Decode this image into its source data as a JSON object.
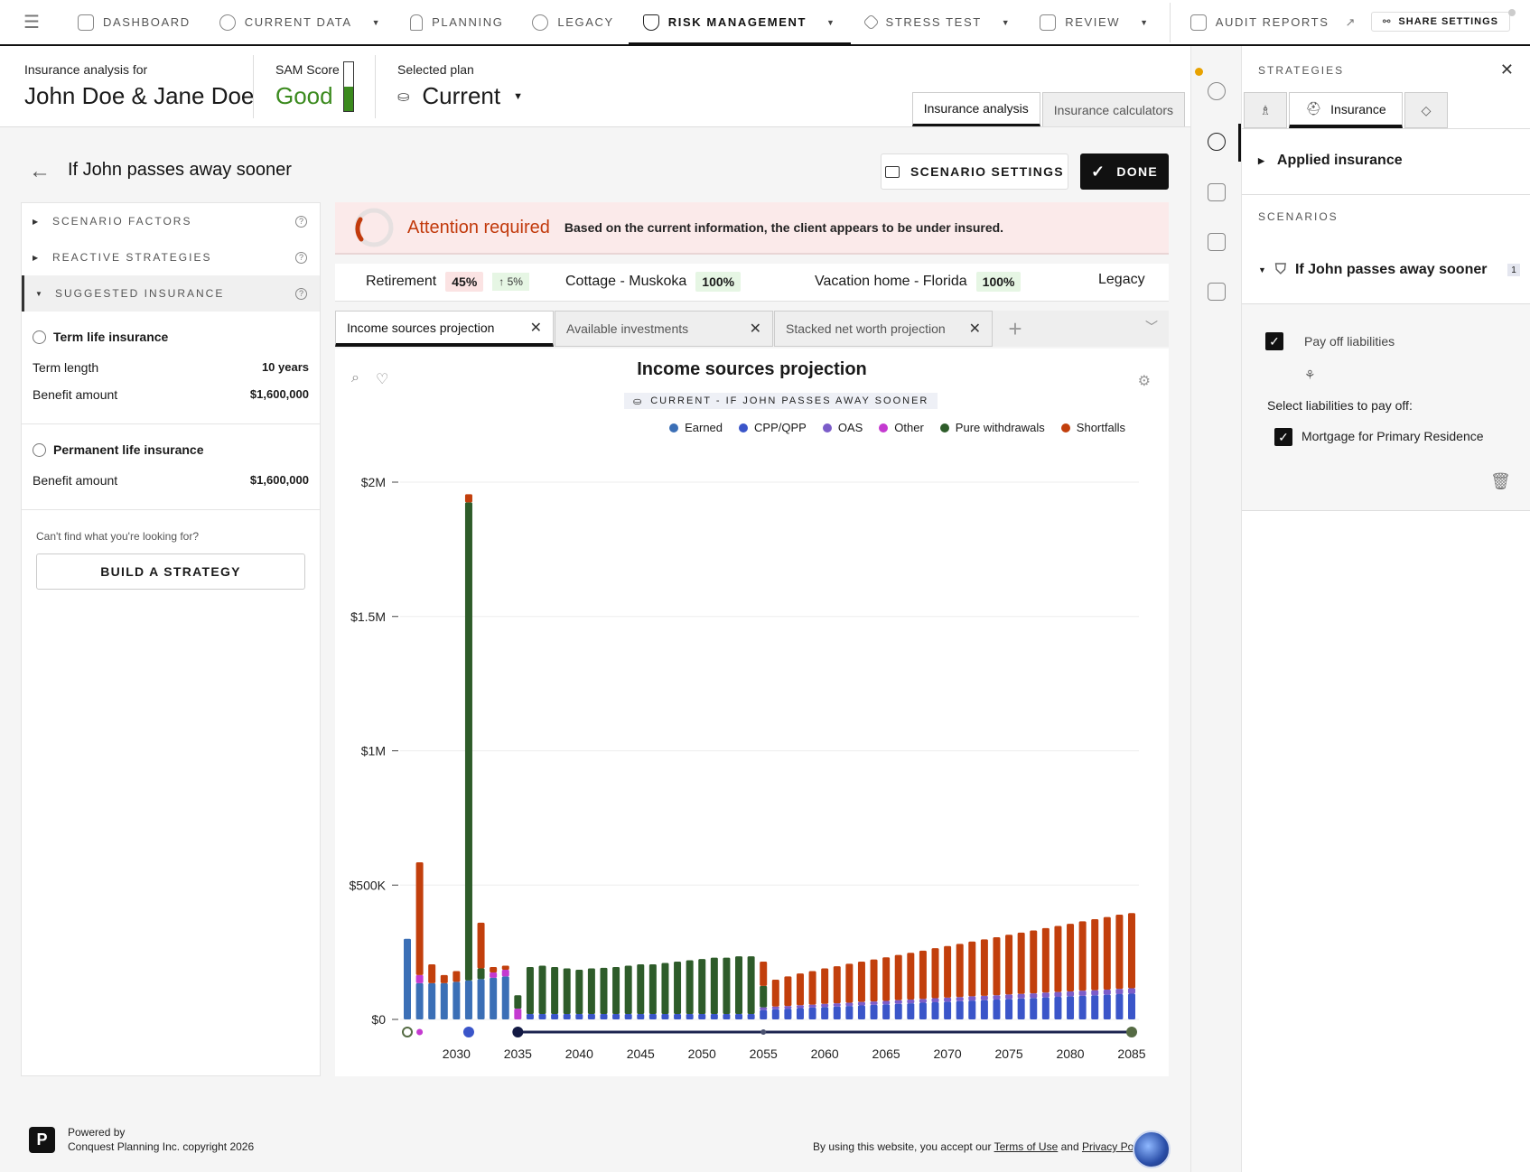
{
  "nav": {
    "items": [
      {
        "label": "DASHBOARD",
        "icon": "dashboard-icon",
        "caret": false,
        "active": false
      },
      {
        "label": "CURRENT DATA",
        "icon": "users-icon",
        "caret": true,
        "active": false
      },
      {
        "label": "PLANNING",
        "icon": "chess-icon",
        "caret": false,
        "active": false
      },
      {
        "label": "LEGACY",
        "icon": "family-icon",
        "caret": false,
        "active": false
      },
      {
        "label": "RISK MANAGEMENT",
        "icon": "shield-icon",
        "caret": true,
        "active": true
      },
      {
        "label": "STRESS TEST",
        "icon": "diamond-icon",
        "caret": true,
        "active": false
      },
      {
        "label": "REVIEW",
        "icon": "review-icon",
        "caret": true,
        "active": false
      },
      {
        "label": "AUDIT REPORTS",
        "icon": "audit-icon",
        "caret": false,
        "active": false
      }
    ],
    "share_label": "SHARE SETTINGS"
  },
  "header": {
    "for_label": "Insurance analysis for",
    "client_name": "John Doe & Jane Doe",
    "sam_label": "SAM Score",
    "sam_value": "Good",
    "sam_level": 0.5,
    "plan_label": "Selected plan",
    "plan_value": "Current",
    "tabs": [
      "Insurance analysis",
      "Insurance calculators"
    ]
  },
  "scenario": {
    "title": "If John passes away sooner",
    "settings_label": "SCENARIO SETTINGS",
    "done_label": "DONE"
  },
  "left": {
    "accordions": [
      "SCENARIO FACTORS",
      "REACTIVE STRATEGIES",
      "SUGGESTED INSURANCE"
    ],
    "term": {
      "title": "Term life insurance",
      "length_label": "Term length",
      "length_value": "10 years",
      "benefit_label": "Benefit amount",
      "benefit_value": "$1,600,000"
    },
    "permanent": {
      "title": "Permanent life insurance",
      "benefit_label": "Benefit amount",
      "benefit_value": "$1,600,000"
    },
    "cant_find": "Can't find what you're looking for?",
    "build_label": "BUILD A STRATEGY"
  },
  "alert": {
    "title": "Attention required",
    "message": "Based on the current information, the client appears to be under insured."
  },
  "goals": {
    "retirement_label": "Retirement",
    "retirement_pct": "45%",
    "retirement_change": "5%",
    "cottage_label": "Cottage - Muskoka",
    "cottage_pct": "100%",
    "vacation_label": "Vacation home - Florida",
    "vacation_pct": "100%",
    "legacy_label": "Legacy"
  },
  "chart_tabs": [
    "Income sources projection",
    "Available investments",
    "Stacked net worth projection"
  ],
  "chart_data": {
    "type": "bar",
    "stacked": true,
    "title": "Income sources projection",
    "subtitle": "CURRENT - IF JOHN PASSES AWAY SOONER",
    "legend": [
      {
        "name": "Earned",
        "color": "#3b6fb6"
      },
      {
        "name": "CPP/QPP",
        "color": "#3a55c9"
      },
      {
        "name": "OAS",
        "color": "#7b5cc9"
      },
      {
        "name": "Other",
        "color": "#c43ad0"
      },
      {
        "name": "Pure withdrawals",
        "color": "#2e5c2a"
      },
      {
        "name": "Shortfalls",
        "color": "#c23f0c"
      }
    ],
    "y_ticks": [
      "$2M",
      "$1.5M",
      "$1M",
      "$500K",
      "$0"
    ],
    "ylim": [
      0,
      2000000
    ],
    "x_ticks": [
      "2030",
      "2035",
      "2040",
      "2045",
      "2050",
      "2055",
      "2060",
      "2065",
      "2070",
      "2075",
      "2080",
      "2085"
    ],
    "years": [
      2026,
      2027,
      2028,
      2029,
      2030,
      2031,
      2032,
      2033,
      2034,
      2035,
      2036,
      2037,
      2038,
      2039,
      2040,
      2041,
      2042,
      2043,
      2044,
      2045,
      2046,
      2047,
      2048,
      2049,
      2050,
      2051,
      2052,
      2053,
      2054,
      2055,
      2056,
      2057,
      2058,
      2059,
      2060,
      2061,
      2062,
      2063,
      2064,
      2065,
      2066,
      2067,
      2068,
      2069,
      2070,
      2071,
      2072,
      2073,
      2074,
      2075,
      2076,
      2077,
      2078,
      2079,
      2080,
      2081,
      2082,
      2083,
      2084,
      2085
    ],
    "series": [
      {
        "name": "Earned",
        "values": [
          300000,
          135000,
          135000,
          135000,
          140000,
          145000,
          150000,
          155000,
          160000,
          0,
          0,
          0,
          0,
          0,
          0,
          0,
          0,
          0,
          0,
          0,
          0,
          0,
          0,
          0,
          0,
          0,
          0,
          0,
          0,
          0,
          0,
          0,
          0,
          0,
          0,
          0,
          0,
          0,
          0,
          0,
          0,
          0,
          0,
          0,
          0,
          0,
          0,
          0,
          0,
          0,
          0,
          0,
          0,
          0,
          0,
          0,
          0,
          0,
          0,
          0
        ]
      },
      {
        "name": "CPP/QPP",
        "values": [
          0,
          0,
          0,
          0,
          0,
          0,
          0,
          0,
          0,
          0,
          20000,
          20000,
          20000,
          20000,
          20000,
          20000,
          20000,
          20000,
          20000,
          20000,
          20000,
          20000,
          20000,
          20000,
          20000,
          20000,
          20000,
          20000,
          20000,
          35000,
          38000,
          40000,
          42000,
          44000,
          46000,
          48000,
          50000,
          52000,
          54000,
          56000,
          58000,
          60000,
          62000,
          64000,
          66000,
          68000,
          70000,
          72000,
          74000,
          76000,
          78000,
          80000,
          82000,
          84000,
          86000,
          88000,
          90000,
          92000,
          94000,
          96000
        ]
      },
      {
        "name": "OAS",
        "values": [
          0,
          0,
          0,
          0,
          0,
          0,
          0,
          0,
          0,
          0,
          0,
          0,
          0,
          0,
          0,
          0,
          0,
          0,
          0,
          0,
          0,
          0,
          0,
          0,
          0,
          0,
          0,
          0,
          0,
          10000,
          10000,
          10000,
          11000,
          11000,
          12000,
          12000,
          12000,
          13000,
          13000,
          13000,
          14000,
          14000,
          14000,
          15000,
          15000,
          15000,
          16000,
          16000,
          16000,
          17000,
          17000,
          17000,
          18000,
          18000,
          18000,
          19000,
          19000,
          19000,
          20000,
          20000
        ]
      },
      {
        "name": "Other",
        "values": [
          0,
          30000,
          0,
          0,
          0,
          0,
          0,
          20000,
          25000,
          40000,
          0,
          0,
          0,
          0,
          0,
          0,
          0,
          0,
          0,
          0,
          0,
          0,
          0,
          0,
          0,
          0,
          0,
          0,
          0,
          0,
          0,
          0,
          0,
          0,
          0,
          0,
          0,
          0,
          0,
          0,
          0,
          0,
          0,
          0,
          0,
          0,
          0,
          0,
          0,
          0,
          0,
          0,
          0,
          0,
          0,
          0,
          0,
          0,
          0,
          0
        ]
      },
      {
        "name": "Pure withdrawals",
        "values": [
          0,
          0,
          0,
          0,
          0,
          1780000,
          40000,
          0,
          0,
          50000,
          175000,
          180000,
          175000,
          170000,
          165000,
          170000,
          172000,
          175000,
          180000,
          185000,
          185000,
          190000,
          195000,
          200000,
          205000,
          210000,
          210000,
          215000,
          215000,
          80000,
          0,
          0,
          0,
          0,
          0,
          0,
          0,
          0,
          0,
          0,
          0,
          0,
          0,
          0,
          0,
          0,
          0,
          0,
          0,
          0,
          0,
          0,
          0,
          0,
          0,
          0,
          0,
          0,
          0,
          0
        ]
      },
      {
        "name": "Shortfalls",
        "values": [
          0,
          420000,
          70000,
          30000,
          40000,
          30000,
          170000,
          20000,
          15000,
          0,
          0,
          0,
          0,
          0,
          0,
          0,
          0,
          0,
          0,
          0,
          0,
          0,
          0,
          0,
          0,
          0,
          0,
          0,
          0,
          90000,
          100000,
          110000,
          118000,
          125000,
          132000,
          138000,
          145000,
          150000,
          156000,
          162000,
          168000,
          174000,
          180000,
          186000,
          192000,
          198000,
          204000,
          210000,
          216000,
          222000,
          228000,
          234000,
          240000,
          246000,
          252000,
          258000,
          264000,
          270000,
          276000,
          280000
        ]
      }
    ]
  },
  "right": {
    "header": "STRATEGIES",
    "tab_label": "Insurance",
    "applied_label": "Applied insurance",
    "scenarios_header": "SCENARIOS",
    "scenario_name": "If John passes away sooner",
    "scenario_count": "1",
    "payoff_label": "Pay off liabilities",
    "select_label": "Select liabilities to pay off:",
    "liability_label": "Mortgage for Primary Residence"
  },
  "footer": {
    "powered_by": "Powered by",
    "copyright": "Conquest Planning Inc. copyright 2026",
    "terms_pre": "By using this website, you accept our",
    "terms_link": "Terms of Use",
    "terms_and": "and",
    "privacy_link": "Privacy Policy",
    "logo_letter": "P"
  }
}
